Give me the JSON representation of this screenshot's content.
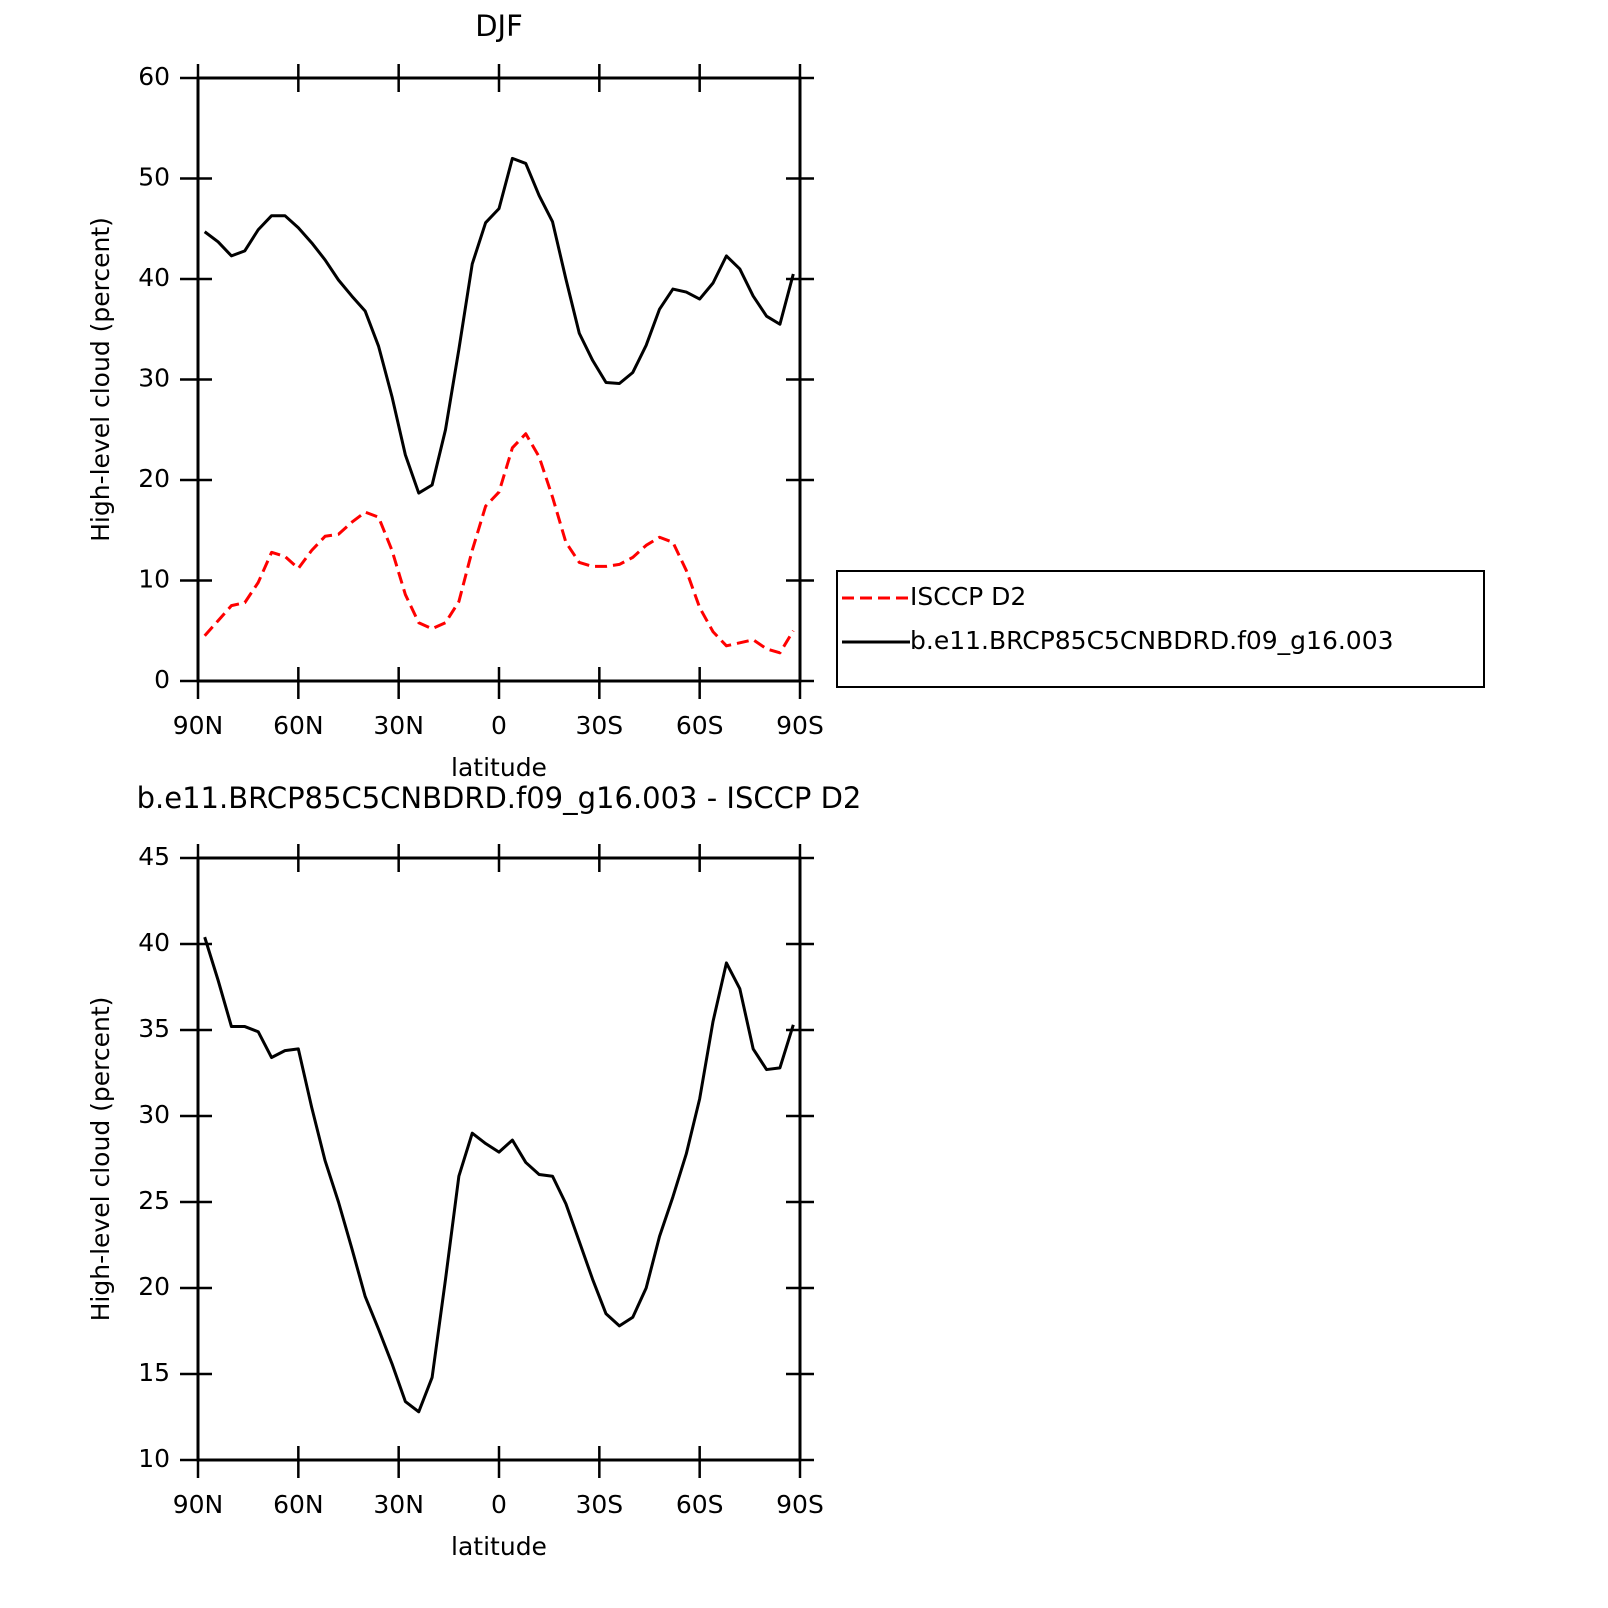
{
  "chart_data": [
    {
      "type": "line",
      "title": "DJF",
      "xlabel": "latitude",
      "ylabel": "High-level cloud (percent)",
      "x": [
        88,
        84,
        80,
        76,
        72,
        68,
        64,
        60,
        56,
        52,
        48,
        44,
        40,
        36,
        32,
        28,
        24,
        20,
        16,
        12,
        8,
        4,
        0,
        -4,
        -8,
        -12,
        -16,
        -20,
        -24,
        -28,
        -32,
        -36,
        -40,
        -44,
        -48,
        -52,
        -56,
        -60,
        -64,
        -68,
        -72,
        -76,
        -80,
        -84,
        -88
      ],
      "series": [
        {
          "name": "ISCCP D2",
          "color": "#ff0000",
          "dashed": true,
          "values": [
            4.5,
            6.0,
            7.5,
            7.8,
            9.8,
            12.8,
            12.4,
            11.2,
            13.0,
            14.4,
            14.6,
            15.8,
            16.8,
            16.3,
            13.0,
            8.6,
            5.8,
            5.2,
            5.8,
            7.9,
            13.0,
            17.4,
            18.8,
            23.2,
            24.6,
            22.3,
            18.3,
            13.8,
            11.8,
            11.4,
            11.4,
            11.6,
            12.3,
            13.5,
            14.3,
            13.8,
            11.0,
            7.3,
            4.9,
            3.5,
            3.8,
            4.1,
            3.2,
            2.8,
            5.0
          ]
        },
        {
          "name": "b.e11.BRCP85C5CNBDRD.f09_g16.003",
          "color": "#000000",
          "dashed": false,
          "values": [
            44.7,
            43.7,
            42.3,
            42.8,
            44.9,
            46.3,
            46.3,
            45.1,
            43.6,
            41.9,
            39.9,
            38.3,
            36.8,
            33.3,
            28.3,
            22.5,
            18.7,
            19.5,
            25.0,
            33.0,
            41.5,
            45.6,
            47.0,
            52.0,
            51.5,
            48.3,
            45.7,
            40.0,
            34.6,
            31.9,
            29.7,
            29.6,
            30.7,
            33.4,
            37.0,
            39.0,
            38.7,
            38.0,
            39.6,
            42.3,
            41.0,
            38.3,
            36.3,
            35.5,
            40.5
          ]
        }
      ],
      "xlim": [
        90,
        -90
      ],
      "xticks": [
        {
          "value": 90,
          "label": "90N"
        },
        {
          "value": 60,
          "label": "60N"
        },
        {
          "value": 30,
          "label": "30N"
        },
        0,
        {
          "value": -30,
          "label": "30S"
        },
        {
          "value": -60,
          "label": "60S"
        },
        {
          "value": -90,
          "label": "90S"
        }
      ],
      "ylim": [
        0,
        60
      ],
      "yticks": [
        0,
        10,
        20,
        30,
        40,
        50,
        60
      ],
      "legend": "right"
    },
    {
      "type": "line",
      "title": "b.e11.BRCP85C5CNBDRD.f09_g16.003 - ISCCP D2",
      "xlabel": "latitude",
      "ylabel": "High-level cloud (percent)",
      "x": [
        88,
        84,
        80,
        76,
        72,
        68,
        64,
        60,
        56,
        52,
        48,
        44,
        40,
        36,
        32,
        28,
        24,
        20,
        16,
        12,
        8,
        4,
        0,
        -4,
        -8,
        -12,
        -16,
        -20,
        -24,
        -28,
        -32,
        -36,
        -40,
        -44,
        -48,
        -52,
        -56,
        -60,
        -64,
        -68,
        -72,
        -76,
        -80,
        -84,
        -88
      ],
      "series": [
        {
          "color": "#000000",
          "dashed": false,
          "values": [
            40.4,
            37.9,
            35.2,
            35.2,
            34.9,
            33.4,
            33.8,
            33.9,
            30.5,
            27.4,
            25.0,
            22.3,
            19.5,
            17.6,
            15.6,
            13.4,
            12.8,
            14.8,
            20.5,
            26.5,
            29.0,
            28.4,
            27.9,
            28.6,
            27.3,
            26.6,
            26.5,
            24.9,
            22.7,
            20.5,
            18.5,
            17.8,
            18.3,
            20.0,
            23.0,
            25.3,
            27.8,
            31.0,
            35.5,
            38.9,
            37.4,
            33.9,
            32.7,
            32.8,
            35.3
          ]
        }
      ],
      "xlim": [
        90,
        -90
      ],
      "xticks": [
        {
          "value": 90,
          "label": "90N"
        },
        {
          "value": 60,
          "label": "60N"
        },
        {
          "value": 30,
          "label": "30N"
        },
        0,
        {
          "value": -30,
          "label": "30S"
        },
        {
          "value": -60,
          "label": "60S"
        },
        {
          "value": -90,
          "label": "90S"
        }
      ],
      "ylim": [
        10,
        45
      ],
      "yticks": [
        10,
        15,
        20,
        25,
        30,
        35,
        40,
        45
      ]
    }
  ]
}
